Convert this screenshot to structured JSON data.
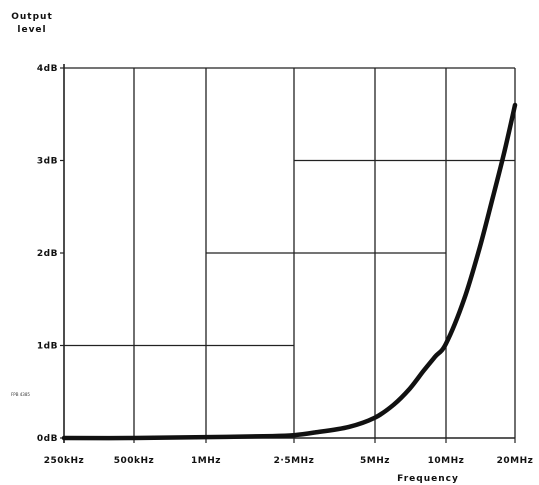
{
  "chart_data": {
    "type": "line",
    "title": "",
    "ylabel": "Output level",
    "ylabel_lines": [
      "Output",
      "level"
    ],
    "xlabel": "Frequency",
    "x_scale": "log",
    "y_unit": "dB",
    "ylim": [
      0,
      4
    ],
    "yticks": [
      {
        "value": 0,
        "label": "0dB"
      },
      {
        "value": 1,
        "label": "1dB"
      },
      {
        "value": 2,
        "label": "2dB"
      },
      {
        "value": 3,
        "label": "3dB"
      },
      {
        "value": 4,
        "label": "4dB"
      }
    ],
    "xticks": [
      {
        "value": 0.25,
        "label": "250kHz"
      },
      {
        "value": 0.5,
        "label": "500kHz"
      },
      {
        "value": 1,
        "label": "1MHz"
      },
      {
        "value": 2.5,
        "label": "2·5MHz"
      },
      {
        "value": 5,
        "label": "5MHz"
      },
      {
        "value": 10,
        "label": "10MHz"
      },
      {
        "value": 20,
        "label": "20MHz"
      }
    ],
    "xlim": [
      0.25,
      20
    ],
    "x_unit": "MHz",
    "grid": true,
    "reference_code": "FPB 4385",
    "series": [
      {
        "x": [
          0.25,
          0.5,
          1,
          2,
          2.5,
          3,
          4,
          5,
          6,
          7,
          8,
          9,
          10,
          12,
          14,
          16,
          18,
          20
        ],
        "values": [
          0,
          0,
          0.01,
          0.02,
          0.03,
          0.06,
          0.12,
          0.22,
          0.36,
          0.53,
          0.72,
          0.88,
          1.02,
          1.5,
          2.05,
          2.6,
          3.1,
          3.6
        ]
      }
    ]
  }
}
